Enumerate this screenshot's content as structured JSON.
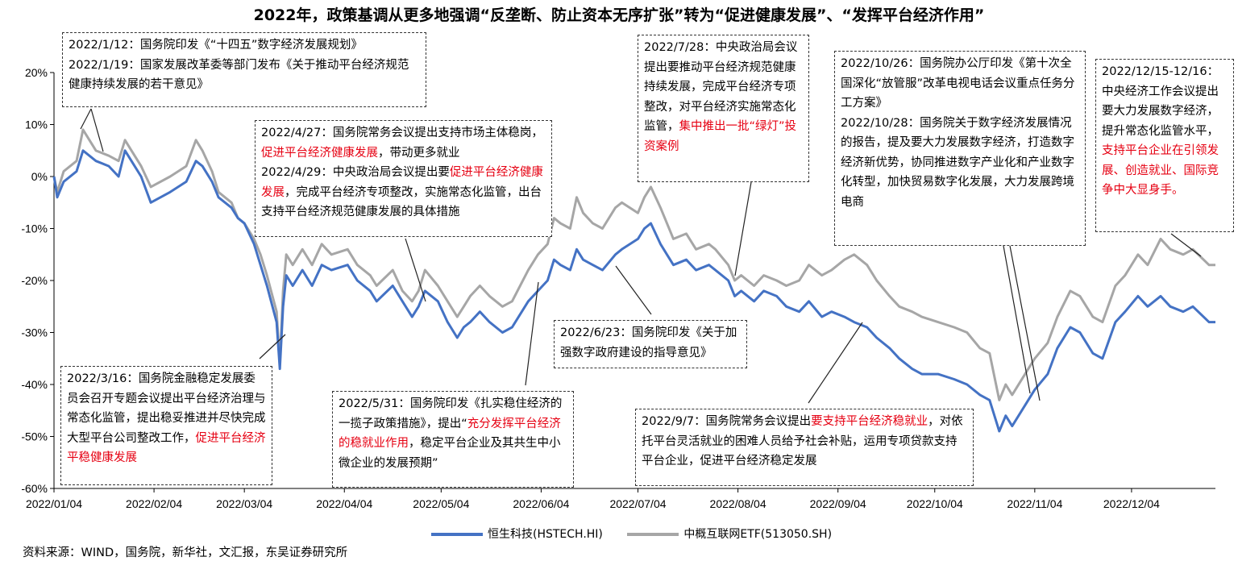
{
  "chart_data": {
    "type": "line",
    "title": "2022年，政策基调从更多地强调“反垄断、防止资本无序扩张”转为“促进健康发展”、“发挥平台经济作用”",
    "y_ticks": [
      "20%",
      "10%",
      "0%",
      "-10%",
      "-20%",
      "-30%",
      "-40%",
      "-50%",
      "-60%"
    ],
    "ylim": [
      -60,
      20
    ],
    "x_ticks": [
      "2022/01/04",
      "2022/02/04",
      "2022/03/04",
      "2022/04/04",
      "2022/05/04",
      "2022/06/04",
      "2022/07/04",
      "2022/08/04",
      "2022/09/04",
      "2022/10/04",
      "2022/11/04",
      "2022/12/04"
    ],
    "x_tick_dates": [
      "2022-01-04",
      "2022-02-04",
      "2022-03-04",
      "2022-04-04",
      "2022-05-04",
      "2022-06-04",
      "2022-07-04",
      "2022-08-04",
      "2022-09-04",
      "2022-10-04",
      "2022-11-04",
      "2022-12-04"
    ],
    "xlim": [
      "2022-01-04",
      "2022-12-30"
    ],
    "legend_position": "bottom",
    "series": [
      {
        "name": "恒生科技(HSTECH.HI)",
        "color": "#4472c4",
        "points": [
          [
            "2022-01-04",
            0
          ],
          [
            "2022-01-05",
            -4
          ],
          [
            "2022-01-07",
            -1
          ],
          [
            "2022-01-11",
            1
          ],
          [
            "2022-01-13",
            5
          ],
          [
            "2022-01-17",
            3
          ],
          [
            "2022-01-21",
            2
          ],
          [
            "2022-01-24",
            0
          ],
          [
            "2022-01-26",
            5
          ],
          [
            "2022-01-28",
            3
          ],
          [
            "2022-01-31",
            0
          ],
          [
            "2022-02-03",
            -5
          ],
          [
            "2022-02-09",
            -3
          ],
          [
            "2022-02-14",
            -1
          ],
          [
            "2022-02-17",
            3
          ],
          [
            "2022-02-19",
            2
          ],
          [
            "2022-02-22",
            -1
          ],
          [
            "2022-02-24",
            -4
          ],
          [
            "2022-02-28",
            -6
          ],
          [
            "2022-03-02",
            -8
          ],
          [
            "2022-03-04",
            -9
          ],
          [
            "2022-03-07",
            -13
          ],
          [
            "2022-03-09",
            -17
          ],
          [
            "2022-03-11",
            -21
          ],
          [
            "2022-03-14",
            -28
          ],
          [
            "2022-03-15",
            -37
          ],
          [
            "2022-03-16",
            -25
          ],
          [
            "2022-03-17",
            -19
          ],
          [
            "2022-03-19",
            -21
          ],
          [
            "2022-03-22",
            -18
          ],
          [
            "2022-03-25",
            -21
          ],
          [
            "2022-03-28",
            -17
          ],
          [
            "2022-03-31",
            -18
          ],
          [
            "2022-04-05",
            -17
          ],
          [
            "2022-04-08",
            -20
          ],
          [
            "2022-04-12",
            -22
          ],
          [
            "2022-04-14",
            -24
          ],
          [
            "2022-04-19",
            -21
          ],
          [
            "2022-04-22",
            -24
          ],
          [
            "2022-04-25",
            -27
          ],
          [
            "2022-04-27",
            -25
          ],
          [
            "2022-04-29",
            -22
          ],
          [
            "2022-05-03",
            -24
          ],
          [
            "2022-05-06",
            -28
          ],
          [
            "2022-05-09",
            -31
          ],
          [
            "2022-05-11",
            -29
          ],
          [
            "2022-05-13",
            -28
          ],
          [
            "2022-05-16",
            -26
          ],
          [
            "2022-05-19",
            -28
          ],
          [
            "2022-05-23",
            -30
          ],
          [
            "2022-05-26",
            -29
          ],
          [
            "2022-05-31",
            -24
          ],
          [
            "2022-06-03",
            -22
          ],
          [
            "2022-06-06",
            -20
          ],
          [
            "2022-06-08",
            -16
          ],
          [
            "2022-06-10",
            -17
          ],
          [
            "2022-06-13",
            -18
          ],
          [
            "2022-06-15",
            -14
          ],
          [
            "2022-06-17",
            -16
          ],
          [
            "2022-06-20",
            -17
          ],
          [
            "2022-06-23",
            -18
          ],
          [
            "2022-06-27",
            -15
          ],
          [
            "2022-06-29",
            -14
          ],
          [
            "2022-07-04",
            -12
          ],
          [
            "2022-07-06",
            -10
          ],
          [
            "2022-07-08",
            -9
          ],
          [
            "2022-07-11",
            -13
          ],
          [
            "2022-07-13",
            -15
          ],
          [
            "2022-07-15",
            -17
          ],
          [
            "2022-07-19",
            -16
          ],
          [
            "2022-07-22",
            -18
          ],
          [
            "2022-07-26",
            -17
          ],
          [
            "2022-07-28",
            -18
          ],
          [
            "2022-08-01",
            -20
          ],
          [
            "2022-08-03",
            -23
          ],
          [
            "2022-08-05",
            -22
          ],
          [
            "2022-08-09",
            -24
          ],
          [
            "2022-08-12",
            -22
          ],
          [
            "2022-08-16",
            -23
          ],
          [
            "2022-08-19",
            -25
          ],
          [
            "2022-08-23",
            -26
          ],
          [
            "2022-08-26",
            -24
          ],
          [
            "2022-08-30",
            -27
          ],
          [
            "2022-09-02",
            -26
          ],
          [
            "2022-09-06",
            -27
          ],
          [
            "2022-09-09",
            -28
          ],
          [
            "2022-09-13",
            -29
          ],
          [
            "2022-09-16",
            -31
          ],
          [
            "2022-09-20",
            -33
          ],
          [
            "2022-09-23",
            -35
          ],
          [
            "2022-09-27",
            -37
          ],
          [
            "2022-09-30",
            -38
          ],
          [
            "2022-10-05",
            -38
          ],
          [
            "2022-10-10",
            -39
          ],
          [
            "2022-10-14",
            -40
          ],
          [
            "2022-10-18",
            -42
          ],
          [
            "2022-10-21",
            -43
          ],
          [
            "2022-10-24",
            -49
          ],
          [
            "2022-10-26",
            -46
          ],
          [
            "2022-10-28",
            -48
          ],
          [
            "2022-11-01",
            -44
          ],
          [
            "2022-11-04",
            -41
          ],
          [
            "2022-11-08",
            -38
          ],
          [
            "2022-11-11",
            -33
          ],
          [
            "2022-11-15",
            -29
          ],
          [
            "2022-11-18",
            -30
          ],
          [
            "2022-11-22",
            -34
          ],
          [
            "2022-11-25",
            -35
          ],
          [
            "2022-11-29",
            -28
          ],
          [
            "2022-12-02",
            -26
          ],
          [
            "2022-12-06",
            -23
          ],
          [
            "2022-12-09",
            -25
          ],
          [
            "2022-12-13",
            -23
          ],
          [
            "2022-12-16",
            -25
          ],
          [
            "2022-12-20",
            -26
          ],
          [
            "2022-12-23",
            -25
          ],
          [
            "2022-12-28",
            -28
          ],
          [
            "2022-12-30",
            -28
          ]
        ]
      },
      {
        "name": "中概互联网ETF(513050.SH)",
        "color": "#a6a6a6",
        "points": [
          [
            "2022-01-04",
            0
          ],
          [
            "2022-01-05",
            -3
          ],
          [
            "2022-01-07",
            1
          ],
          [
            "2022-01-11",
            3
          ],
          [
            "2022-01-13",
            9
          ],
          [
            "2022-01-17",
            5
          ],
          [
            "2022-01-21",
            4
          ],
          [
            "2022-01-24",
            3
          ],
          [
            "2022-01-26",
            7
          ],
          [
            "2022-01-28",
            5
          ],
          [
            "2022-01-31",
            2
          ],
          [
            "2022-02-03",
            -2
          ],
          [
            "2022-02-09",
            0
          ],
          [
            "2022-02-14",
            2
          ],
          [
            "2022-02-17",
            7
          ],
          [
            "2022-02-19",
            5
          ],
          [
            "2022-02-22",
            1
          ],
          [
            "2022-02-24",
            -3
          ],
          [
            "2022-02-28",
            -5
          ],
          [
            "2022-03-02",
            -8
          ],
          [
            "2022-03-04",
            -9
          ],
          [
            "2022-03-07",
            -12
          ],
          [
            "2022-03-09",
            -15
          ],
          [
            "2022-03-11",
            -19
          ],
          [
            "2022-03-14",
            -26
          ],
          [
            "2022-03-15",
            -36
          ],
          [
            "2022-03-16",
            -22
          ],
          [
            "2022-03-17",
            -15
          ],
          [
            "2022-03-19",
            -17
          ],
          [
            "2022-03-22",
            -14
          ],
          [
            "2022-03-25",
            -17
          ],
          [
            "2022-03-28",
            -13
          ],
          [
            "2022-03-31",
            -15
          ],
          [
            "2022-04-05",
            -14
          ],
          [
            "2022-04-08",
            -17
          ],
          [
            "2022-04-12",
            -19
          ],
          [
            "2022-04-14",
            -21
          ],
          [
            "2022-04-19",
            -18
          ],
          [
            "2022-04-22",
            -22
          ],
          [
            "2022-04-25",
            -24
          ],
          [
            "2022-04-27",
            -22
          ],
          [
            "2022-04-29",
            -18
          ],
          [
            "2022-05-03",
            -21
          ],
          [
            "2022-05-06",
            -24
          ],
          [
            "2022-05-09",
            -27
          ],
          [
            "2022-05-11",
            -25
          ],
          [
            "2022-05-13",
            -23
          ],
          [
            "2022-05-16",
            -21
          ],
          [
            "2022-05-19",
            -23
          ],
          [
            "2022-05-23",
            -25
          ],
          [
            "2022-05-26",
            -24
          ],
          [
            "2022-05-31",
            -18
          ],
          [
            "2022-06-03",
            -15
          ],
          [
            "2022-06-06",
            -13
          ],
          [
            "2022-06-08",
            -8
          ],
          [
            "2022-06-10",
            -9
          ],
          [
            "2022-06-13",
            -10
          ],
          [
            "2022-06-15",
            -4
          ],
          [
            "2022-06-17",
            -7
          ],
          [
            "2022-06-20",
            -9
          ],
          [
            "2022-06-23",
            -10
          ],
          [
            "2022-06-27",
            -6
          ],
          [
            "2022-06-29",
            -5
          ],
          [
            "2022-07-04",
            -7
          ],
          [
            "2022-07-06",
            -4
          ],
          [
            "2022-07-08",
            -2
          ],
          [
            "2022-07-11",
            -6
          ],
          [
            "2022-07-13",
            -9
          ],
          [
            "2022-07-15",
            -12
          ],
          [
            "2022-07-19",
            -11
          ],
          [
            "2022-07-22",
            -14
          ],
          [
            "2022-07-26",
            -13
          ],
          [
            "2022-07-28",
            -14
          ],
          [
            "2022-08-01",
            -17
          ],
          [
            "2022-08-03",
            -20
          ],
          [
            "2022-08-05",
            -19
          ],
          [
            "2022-08-09",
            -21
          ],
          [
            "2022-08-12",
            -19
          ],
          [
            "2022-08-16",
            -20
          ],
          [
            "2022-08-19",
            -21
          ],
          [
            "2022-08-23",
            -20
          ],
          [
            "2022-08-26",
            -17
          ],
          [
            "2022-08-30",
            -19
          ],
          [
            "2022-09-02",
            -18
          ],
          [
            "2022-09-06",
            -16
          ],
          [
            "2022-09-09",
            -15
          ],
          [
            "2022-09-13",
            -17
          ],
          [
            "2022-09-16",
            -20
          ],
          [
            "2022-09-20",
            -23
          ],
          [
            "2022-09-23",
            -25
          ],
          [
            "2022-09-27",
            -26
          ],
          [
            "2022-09-30",
            -27
          ],
          [
            "2022-10-05",
            -28
          ],
          [
            "2022-10-10",
            -29
          ],
          [
            "2022-10-14",
            -30
          ],
          [
            "2022-10-18",
            -33
          ],
          [
            "2022-10-21",
            -34
          ],
          [
            "2022-10-24",
            -43
          ],
          [
            "2022-10-26",
            -40
          ],
          [
            "2022-10-28",
            -42
          ],
          [
            "2022-11-01",
            -38
          ],
          [
            "2022-11-04",
            -35
          ],
          [
            "2022-11-08",
            -32
          ],
          [
            "2022-11-11",
            -27
          ],
          [
            "2022-11-15",
            -22
          ],
          [
            "2022-11-18",
            -23
          ],
          [
            "2022-11-22",
            -27
          ],
          [
            "2022-11-25",
            -28
          ],
          [
            "2022-11-29",
            -21
          ],
          [
            "2022-12-02",
            -19
          ],
          [
            "2022-12-06",
            -15
          ],
          [
            "2022-12-09",
            -17
          ],
          [
            "2022-12-13",
            -12
          ],
          [
            "2022-12-16",
            -14
          ],
          [
            "2022-12-20",
            -15
          ],
          [
            "2022-12-23",
            -14
          ],
          [
            "2022-12-28",
            -17
          ],
          [
            "2022-12-30",
            -17
          ]
        ]
      }
    ],
    "annotations": [
      {
        "lines": [
          [
            {
              "t": "2022/1/12：国务院印发《“十四五”数字经济发展规划》"
            }
          ],
          [
            {
              "t": "2022/1/19：国家发展改革委等部门发布《关于推动平台经济规范健康持续发展的若干意见》"
            }
          ]
        ]
      },
      {
        "lines": [
          [
            {
              "t": "2022/3/16：国务院金融稳定发展委员会召开专题会议提出平台经济治理与常态化监管，提出稳妥推进并尽快完成大型平台公司整改工作，"
            },
            {
              "t": "促进平台经济平稳健康发展",
              "hl": true
            }
          ]
        ]
      },
      {
        "lines": [
          [
            {
              "t": "2022/4/27：国务院常务会议提出支持市场主体稳岗，"
            },
            {
              "t": "促进平台经济健康发展",
              "hl": true
            },
            {
              "t": "，带动更多就业"
            }
          ],
          [
            {
              "t": "2022/4/29：中央政治局会议提出要"
            },
            {
              "t": "促进平台经济健康发展",
              "hl": true
            },
            {
              "t": "，完成平台经济专项整改，实施常态化监管，出台支持平台经济规范健康发展的具体措施"
            }
          ]
        ]
      },
      {
        "lines": [
          [
            {
              "t": "2022/5/31：国务院印发《扎实稳住经济的一揽子政策措施》，提出“"
            },
            {
              "t": "充分发挥平台经济的稳就业作用",
              "hl": true
            },
            {
              "t": "，稳定平台企业及其共生中小微企业的发展预期”"
            }
          ]
        ]
      },
      {
        "lines": [
          [
            {
              "t": "2022/6/23：国务院印发《关于加强数字政府建设的指导意见》"
            }
          ]
        ]
      },
      {
        "lines": [
          [
            {
              "t": "2022/7/28：中央政治局会议提出要推动平台经济规范健康持续发展，完成平台经济专项整改，对平台经济实施常态化监管，"
            },
            {
              "t": "集中推出一批“绿灯”投资案例",
              "hl": true
            }
          ]
        ]
      },
      {
        "lines": [
          [
            {
              "t": "2022/9/7：国务院常务会议提出"
            },
            {
              "t": "要支持平台经济稳就业",
              "hl": true
            },
            {
              "t": "，对依托平台灵活就业的困难人员给予社会补贴，运用专项贷款支持平台企业，促进平台经济稳定发展"
            }
          ]
        ]
      },
      {
        "lines": [
          [
            {
              "t": "2022/10/26：国务院办公厅印发《第十次全国深化“放管服”改革电视电话会议重点任务分工方案》"
            }
          ],
          [
            {
              "t": "2022/10/28：国务院关于数字经济发展情况的报告，提及要大力发展数字经济，打造数字经济新优势，协同推进数字产业化和产业数字化转型，加快贸易数字化发展，大力发展跨境电商"
            }
          ]
        ]
      },
      {
        "lines": [
          [
            {
              "t": "2022/12/15-12/16：中央经济工作会议提出要大力发展数字经济，提升常态化监管水平，"
            },
            {
              "t": "支持平台企业在引领发展、创造就业、国际竞争中大显身手。",
              "hl": true
            }
          ]
        ]
      }
    ]
  },
  "source": "资料来源：WIND，国务院，新华社，文汇报，东吴证券研究所"
}
